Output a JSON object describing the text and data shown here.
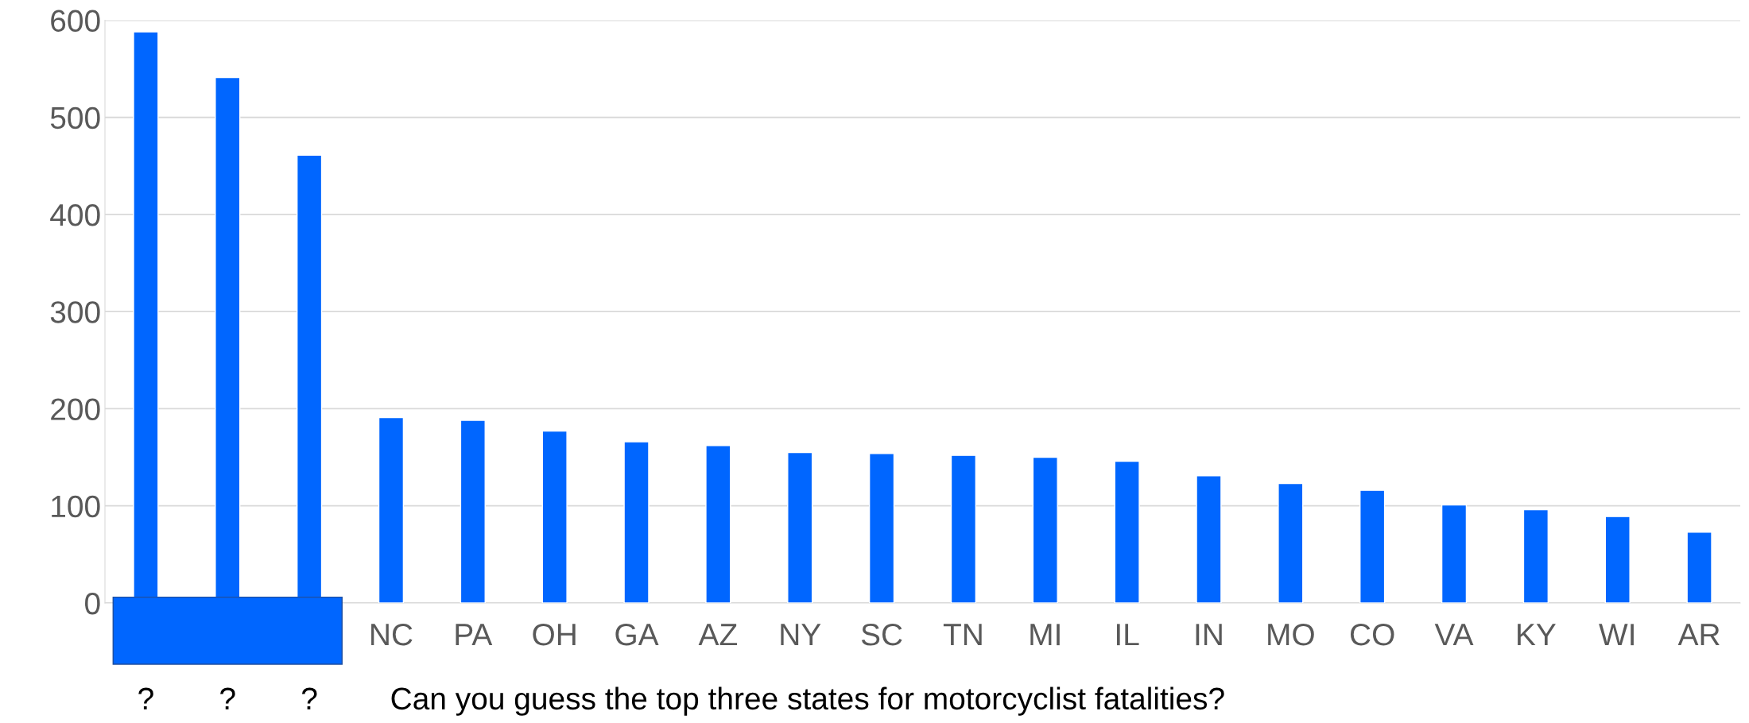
{
  "chart_data": {
    "type": "bar",
    "categories": [
      null,
      null,
      null,
      "NC",
      "PA",
      "OH",
      "GA",
      "AZ",
      "NY",
      "SC",
      "TN",
      "MI",
      "IL",
      "IN",
      "MO",
      "CO",
      "VA",
      "KY",
      "WI",
      "AR"
    ],
    "values": [
      588,
      541,
      461,
      191,
      188,
      177,
      166,
      162,
      155,
      154,
      152,
      150,
      146,
      131,
      123,
      116,
      101,
      96,
      89,
      73
    ],
    "color": "#0066ff",
    "ylim": [
      0,
      600
    ],
    "yticks": [
      0,
      100,
      200,
      300,
      400,
      500,
      600
    ],
    "grid": "y",
    "annotations": [
      "?",
      "?",
      "?",
      "Can you guess the top three states for motorcyclist fatalities?"
    ]
  }
}
